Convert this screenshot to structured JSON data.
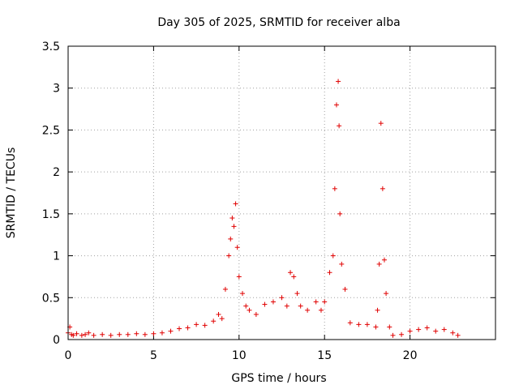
{
  "chart_data": {
    "type": "scatter",
    "title": "Day 305 of 2025, SRMTID for receiver alba",
    "xlabel": "GPS time / hours",
    "ylabel": "SRMTID / TECUs",
    "xlim": [
      0,
      25
    ],
    "ylim": [
      0,
      3.5
    ],
    "xticks": [
      0,
      5,
      10,
      15,
      20
    ],
    "xtick_labels": [
      "0",
      "5",
      "10",
      "15",
      "20"
    ],
    "yticks": [
      0,
      0.5,
      1,
      1.5,
      2,
      2.5,
      3,
      3.5
    ],
    "ytick_labels": [
      "0",
      "0.5",
      "1",
      "1.5",
      "2",
      "2.5",
      "3",
      "3.5"
    ],
    "grid": true,
    "marker": "+",
    "series": [
      {
        "name": "SRMTID",
        "color": "#e00000",
        "x": [
          0.0,
          0.1,
          0.2,
          0.3,
          0.5,
          0.8,
          1.0,
          1.2,
          1.5,
          2.0,
          2.5,
          3.0,
          3.5,
          4.0,
          4.5,
          5.0,
          5.5,
          6.0,
          6.5,
          7.0,
          7.5,
          8.0,
          8.5,
          8.8,
          9.0,
          9.2,
          9.4,
          9.5,
          9.6,
          9.7,
          9.8,
          9.9,
          10.0,
          10.2,
          10.4,
          10.6,
          11.0,
          11.5,
          12.0,
          12.5,
          12.8,
          13.0,
          13.2,
          13.4,
          13.6,
          14.0,
          14.5,
          14.8,
          15.0,
          15.3,
          15.5,
          15.6,
          15.7,
          15.8,
          15.85,
          15.9,
          16.0,
          16.2,
          16.5,
          17.0,
          17.5,
          18.0,
          18.1,
          18.2,
          18.3,
          18.4,
          18.5,
          18.6,
          18.8,
          19.0,
          19.5,
          20.0,
          20.5,
          21.0,
          21.5,
          22.0,
          22.5,
          22.8
        ],
        "y": [
          0.08,
          0.15,
          0.06,
          0.05,
          0.07,
          0.05,
          0.06,
          0.08,
          0.05,
          0.06,
          0.05,
          0.06,
          0.06,
          0.07,
          0.06,
          0.07,
          0.08,
          0.1,
          0.13,
          0.14,
          0.18,
          0.17,
          0.22,
          0.3,
          0.25,
          0.6,
          1.0,
          1.2,
          1.45,
          1.35,
          1.62,
          1.1,
          0.75,
          0.55,
          0.4,
          0.35,
          0.3,
          0.42,
          0.45,
          0.5,
          0.4,
          0.8,
          0.75,
          0.55,
          0.4,
          0.35,
          0.45,
          0.35,
          0.45,
          0.8,
          1.0,
          1.8,
          2.8,
          3.08,
          2.55,
          1.5,
          0.9,
          0.6,
          0.2,
          0.18,
          0.18,
          0.15,
          0.35,
          0.9,
          2.58,
          1.8,
          0.95,
          0.55,
          0.15,
          0.05,
          0.06,
          0.1,
          0.12,
          0.14,
          0.1,
          0.12,
          0.08,
          0.05
        ]
      }
    ]
  }
}
